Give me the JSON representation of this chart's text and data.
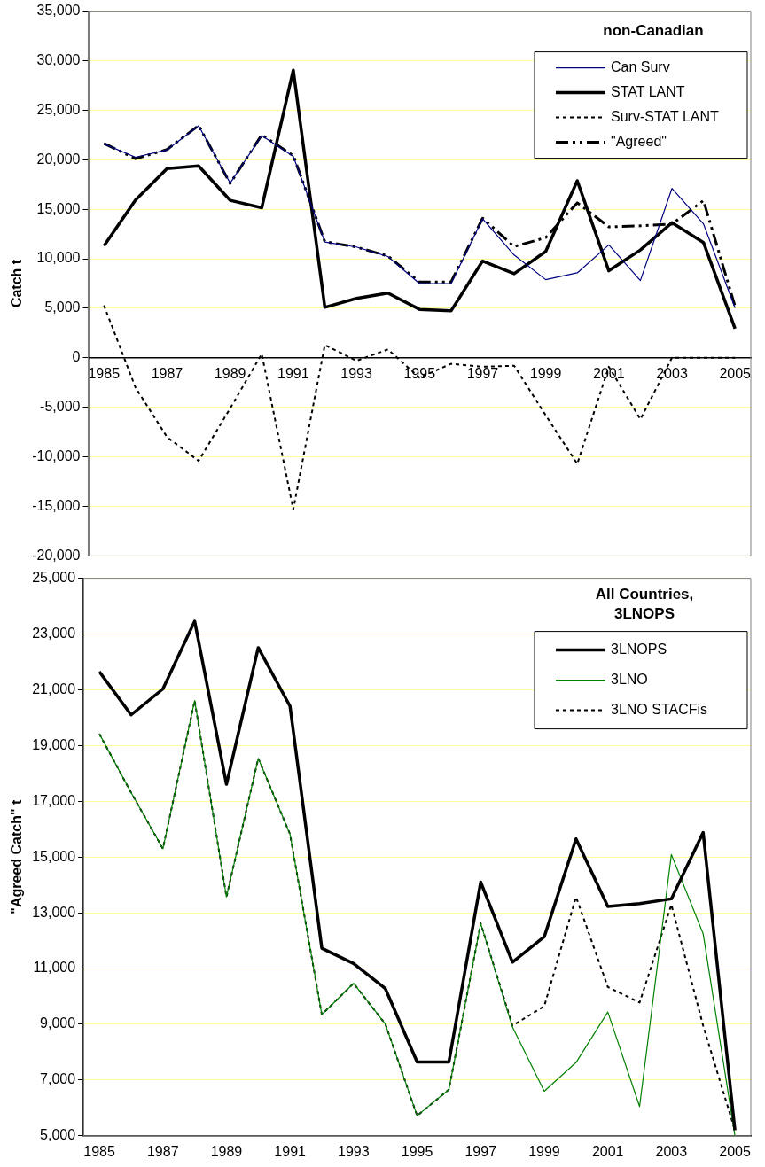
{
  "chart_data": [
    {
      "type": "line",
      "title": "non-Canadian",
      "ylabel": "Catch t",
      "categories": [
        "1985",
        null,
        "1987",
        null,
        "1989",
        null,
        "1991",
        null,
        "1993",
        null,
        "1995",
        null,
        "1997",
        null,
        "1999",
        null,
        "2001",
        null,
        "2003",
        null,
        "2005"
      ],
      "series": [
        {
          "name": "Can Surv",
          "color": "#000080",
          "line_style": "solid",
          "values": [
            21600,
            20250,
            21000,
            23430,
            17640,
            22440,
            20340,
            11700,
            11190,
            10230,
            7500,
            7500,
            14040,
            10380,
            7890,
            8580,
            11400,
            7800,
            17100,
            13530,
            5040
          ]
        },
        {
          "name": "STAT LANT",
          "color": "#000000",
          "line_style": "solid",
          "values": [
            11310,
            15930,
            19110,
            19380,
            15900,
            15150,
            29040,
            5100,
            6000,
            6540,
            4890,
            4740,
            9780,
            8490,
            10740,
            17880,
            8790,
            10890,
            13650,
            11640,
            2940
          ]
        },
        {
          "name": "Surv-STAT LANT",
          "color": "#000000",
          "line_style": "dotted",
          "values": [
            5300,
            -3000,
            -8000,
            -10400,
            -5100,
            400,
            -15300,
            1300,
            -300,
            850,
            -2000,
            -600,
            -900,
            -800,
            -5800,
            -10700,
            -900,
            -6200,
            0,
            0,
            0
          ]
        },
        {
          "name": "\"Agreed\"",
          "color": "#000000",
          "line_style": "dashed",
          "values": [
            21650,
            20100,
            21030,
            23460,
            17610,
            22510,
            20410,
            11730,
            11180,
            10280,
            7650,
            7650,
            14100,
            11230,
            12140,
            15650,
            13230,
            13330,
            13500,
            15880,
            5200
          ]
        }
      ],
      "ylim": [
        -20000,
        35000
      ],
      "yticks": [
        {
          "value": -20000,
          "label": "-20,000"
        },
        {
          "value": -15000,
          "label": "-15,000"
        },
        {
          "value": -10000,
          "label": "-10,000"
        },
        {
          "value": -5000,
          "label": "-5,000"
        },
        0,
        {
          "value": 5000,
          "label": "5,000"
        },
        {
          "value": 10000,
          "label": "10,000"
        },
        {
          "value": 15000,
          "label": "15,000"
        },
        {
          "value": 20000,
          "label": "20,000"
        },
        {
          "value": 25000,
          "label": "25,000"
        },
        {
          "value": 30000,
          "label": "30,000"
        },
        {
          "value": 35000,
          "label": "35,000"
        }
      ],
      "grid": "y",
      "legend": "top right",
      "marker": "none"
    },
    {
      "type": "line",
      "title": "All Countries, 3LNOPS",
      "ylabel": "\"Agreed Catch\" t",
      "categories": [
        "1985",
        null,
        "1987",
        null,
        "1989",
        null,
        "1991",
        null,
        "1993",
        null,
        "1995",
        null,
        "1997",
        null,
        "1999",
        null,
        "2001",
        null,
        "2003",
        null,
        "2005"
      ],
      "series": [
        {
          "name": "3LNOPS",
          "color": "#000000",
          "line_style": "solid",
          "values": [
            21650,
            20100,
            21030,
            23460,
            17610,
            22510,
            20410,
            11730,
            11180,
            10280,
            7650,
            7650,
            14100,
            11230,
            12140,
            15650,
            13230,
            13330,
            13500,
            15880,
            5200
          ]
        },
        {
          "name": "3LNO",
          "color": "#008000",
          "line_style": "solid",
          "values": [
            19420,
            17310,
            15300,
            20610,
            13570,
            18540,
            15820,
            9350,
            10470,
            9010,
            5720,
            6660,
            12620,
            8900,
            6600,
            7630,
            9440,
            6050,
            15090,
            12250,
            5000
          ]
        },
        {
          "name": "3LNO STACFis",
          "color": "#000000",
          "line_style": "dotted",
          "values": [
            19420,
            17310,
            15300,
            20610,
            13570,
            18540,
            15820,
            9350,
            10470,
            9010,
            5720,
            6660,
            12620,
            8950,
            9650,
            13570,
            10340,
            9780,
            13290,
            8950,
            5200
          ]
        }
      ],
      "ylim": [
        5000,
        25000
      ],
      "yticks": [
        {
          "value": 5000,
          "label": "5,000"
        },
        {
          "value": 7000,
          "label": "7,000"
        },
        {
          "value": 9000,
          "label": "9,000"
        },
        {
          "value": 11000,
          "label": "11,000"
        },
        {
          "value": 13000,
          "label": "13,000"
        },
        {
          "value": 15000,
          "label": "15,000"
        },
        {
          "value": 17000,
          "label": "17,000"
        },
        {
          "value": 19000,
          "label": "19,000"
        },
        {
          "value": 21000,
          "label": "21,000"
        },
        {
          "value": 23000,
          "label": "23,000"
        },
        {
          "value": 25000,
          "label": "25,000"
        }
      ],
      "grid": "y",
      "legend": "top right",
      "marker": "none"
    }
  ]
}
